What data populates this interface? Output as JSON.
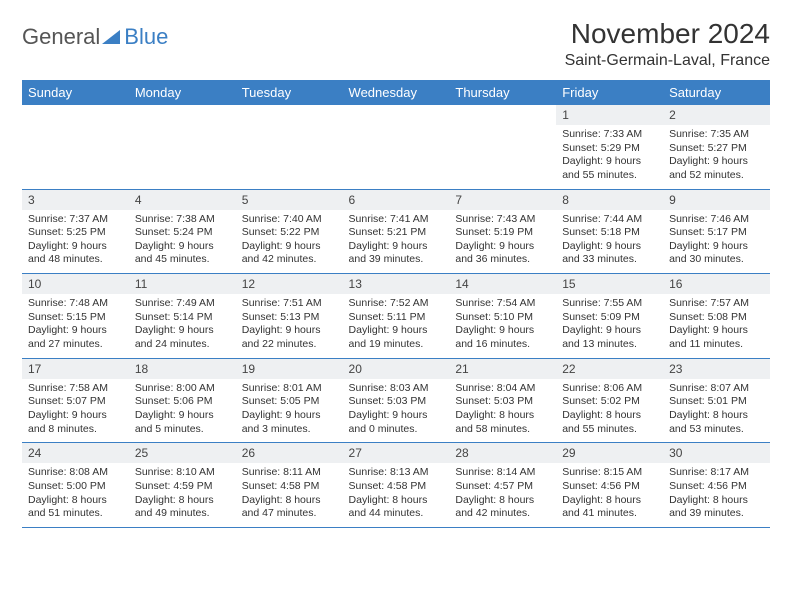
{
  "brand": {
    "part1": "General",
    "part2": "Blue"
  },
  "title": "November 2024",
  "subtitle": "Saint-Germain-Laval, France",
  "colors": {
    "accent": "#3b7fc4",
    "headerBg": "#3b7fc4",
    "dayStrip": "#eef0f2",
    "text": "#333"
  },
  "dayNames": [
    "Sunday",
    "Monday",
    "Tuesday",
    "Wednesday",
    "Thursday",
    "Friday",
    "Saturday"
  ],
  "weeks": [
    [
      {
        "n": "",
        "s": "",
        "ss": "",
        "d": ""
      },
      {
        "n": "",
        "s": "",
        "ss": "",
        "d": ""
      },
      {
        "n": "",
        "s": "",
        "ss": "",
        "d": ""
      },
      {
        "n": "",
        "s": "",
        "ss": "",
        "d": ""
      },
      {
        "n": "",
        "s": "",
        "ss": "",
        "d": ""
      },
      {
        "n": "1",
        "s": "Sunrise: 7:33 AM",
        "ss": "Sunset: 5:29 PM",
        "d": "Daylight: 9 hours and 55 minutes."
      },
      {
        "n": "2",
        "s": "Sunrise: 7:35 AM",
        "ss": "Sunset: 5:27 PM",
        "d": "Daylight: 9 hours and 52 minutes."
      }
    ],
    [
      {
        "n": "3",
        "s": "Sunrise: 7:37 AM",
        "ss": "Sunset: 5:25 PM",
        "d": "Daylight: 9 hours and 48 minutes."
      },
      {
        "n": "4",
        "s": "Sunrise: 7:38 AM",
        "ss": "Sunset: 5:24 PM",
        "d": "Daylight: 9 hours and 45 minutes."
      },
      {
        "n": "5",
        "s": "Sunrise: 7:40 AM",
        "ss": "Sunset: 5:22 PM",
        "d": "Daylight: 9 hours and 42 minutes."
      },
      {
        "n": "6",
        "s": "Sunrise: 7:41 AM",
        "ss": "Sunset: 5:21 PM",
        "d": "Daylight: 9 hours and 39 minutes."
      },
      {
        "n": "7",
        "s": "Sunrise: 7:43 AM",
        "ss": "Sunset: 5:19 PM",
        "d": "Daylight: 9 hours and 36 minutes."
      },
      {
        "n": "8",
        "s": "Sunrise: 7:44 AM",
        "ss": "Sunset: 5:18 PM",
        "d": "Daylight: 9 hours and 33 minutes."
      },
      {
        "n": "9",
        "s": "Sunrise: 7:46 AM",
        "ss": "Sunset: 5:17 PM",
        "d": "Daylight: 9 hours and 30 minutes."
      }
    ],
    [
      {
        "n": "10",
        "s": "Sunrise: 7:48 AM",
        "ss": "Sunset: 5:15 PM",
        "d": "Daylight: 9 hours and 27 minutes."
      },
      {
        "n": "11",
        "s": "Sunrise: 7:49 AM",
        "ss": "Sunset: 5:14 PM",
        "d": "Daylight: 9 hours and 24 minutes."
      },
      {
        "n": "12",
        "s": "Sunrise: 7:51 AM",
        "ss": "Sunset: 5:13 PM",
        "d": "Daylight: 9 hours and 22 minutes."
      },
      {
        "n": "13",
        "s": "Sunrise: 7:52 AM",
        "ss": "Sunset: 5:11 PM",
        "d": "Daylight: 9 hours and 19 minutes."
      },
      {
        "n": "14",
        "s": "Sunrise: 7:54 AM",
        "ss": "Sunset: 5:10 PM",
        "d": "Daylight: 9 hours and 16 minutes."
      },
      {
        "n": "15",
        "s": "Sunrise: 7:55 AM",
        "ss": "Sunset: 5:09 PM",
        "d": "Daylight: 9 hours and 13 minutes."
      },
      {
        "n": "16",
        "s": "Sunrise: 7:57 AM",
        "ss": "Sunset: 5:08 PM",
        "d": "Daylight: 9 hours and 11 minutes."
      }
    ],
    [
      {
        "n": "17",
        "s": "Sunrise: 7:58 AM",
        "ss": "Sunset: 5:07 PM",
        "d": "Daylight: 9 hours and 8 minutes."
      },
      {
        "n": "18",
        "s": "Sunrise: 8:00 AM",
        "ss": "Sunset: 5:06 PM",
        "d": "Daylight: 9 hours and 5 minutes."
      },
      {
        "n": "19",
        "s": "Sunrise: 8:01 AM",
        "ss": "Sunset: 5:05 PM",
        "d": "Daylight: 9 hours and 3 minutes."
      },
      {
        "n": "20",
        "s": "Sunrise: 8:03 AM",
        "ss": "Sunset: 5:03 PM",
        "d": "Daylight: 9 hours and 0 minutes."
      },
      {
        "n": "21",
        "s": "Sunrise: 8:04 AM",
        "ss": "Sunset: 5:03 PM",
        "d": "Daylight: 8 hours and 58 minutes."
      },
      {
        "n": "22",
        "s": "Sunrise: 8:06 AM",
        "ss": "Sunset: 5:02 PM",
        "d": "Daylight: 8 hours and 55 minutes."
      },
      {
        "n": "23",
        "s": "Sunrise: 8:07 AM",
        "ss": "Sunset: 5:01 PM",
        "d": "Daylight: 8 hours and 53 minutes."
      }
    ],
    [
      {
        "n": "24",
        "s": "Sunrise: 8:08 AM",
        "ss": "Sunset: 5:00 PM",
        "d": "Daylight: 8 hours and 51 minutes."
      },
      {
        "n": "25",
        "s": "Sunrise: 8:10 AM",
        "ss": "Sunset: 4:59 PM",
        "d": "Daylight: 8 hours and 49 minutes."
      },
      {
        "n": "26",
        "s": "Sunrise: 8:11 AM",
        "ss": "Sunset: 4:58 PM",
        "d": "Daylight: 8 hours and 47 minutes."
      },
      {
        "n": "27",
        "s": "Sunrise: 8:13 AM",
        "ss": "Sunset: 4:58 PM",
        "d": "Daylight: 8 hours and 44 minutes."
      },
      {
        "n": "28",
        "s": "Sunrise: 8:14 AM",
        "ss": "Sunset: 4:57 PM",
        "d": "Daylight: 8 hours and 42 minutes."
      },
      {
        "n": "29",
        "s": "Sunrise: 8:15 AM",
        "ss": "Sunset: 4:56 PM",
        "d": "Daylight: 8 hours and 41 minutes."
      },
      {
        "n": "30",
        "s": "Sunrise: 8:17 AM",
        "ss": "Sunset: 4:56 PM",
        "d": "Daylight: 8 hours and 39 minutes."
      }
    ]
  ]
}
